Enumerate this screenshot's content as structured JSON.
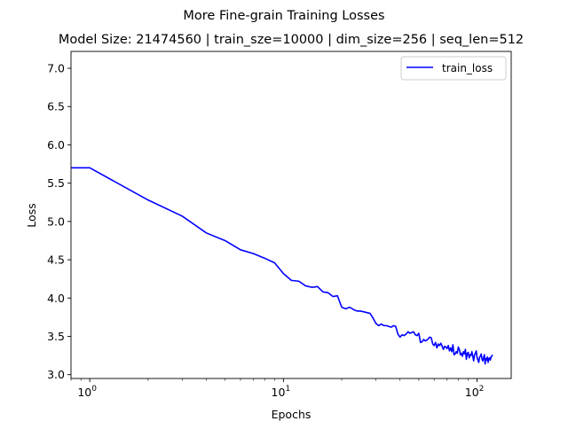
{
  "figure": {
    "suptitle": "More Fine-grain Training Losses"
  },
  "chart_data": {
    "type": "line",
    "title": "Model Size: 21474560 | train_sze=10000 | dim_size=256 | seq_len=512",
    "xlabel": "Epochs",
    "ylabel": "Loss",
    "xscale": "log",
    "xlim": [
      0.8,
      150
    ],
    "ylim": [
      2.95,
      7.22
    ],
    "xticks": [
      {
        "value": 1,
        "base": "10",
        "exp": "0"
      },
      {
        "value": 10,
        "base": "10",
        "exp": "1"
      },
      {
        "value": 100,
        "base": "10",
        "exp": "2"
      }
    ],
    "yticks": [
      "3.0",
      "3.5",
      "4.0",
      "4.5",
      "5.0",
      "5.5",
      "6.0",
      "6.5",
      "7.0"
    ],
    "legend": {
      "position": "top-right",
      "entries": [
        "train_loss"
      ]
    },
    "grid": false,
    "series": [
      {
        "name": "train_loss",
        "color": "#0000ff",
        "x": [
          0.8,
          1,
          2,
          3,
          4,
          5,
          6,
          7,
          8,
          9,
          10,
          11,
          12,
          13,
          14,
          15,
          16,
          17,
          18,
          19,
          20,
          21,
          22,
          23,
          24,
          25,
          26,
          27,
          28,
          29,
          30,
          31,
          32,
          33,
          34,
          35,
          36,
          37,
          38,
          39,
          40,
          41,
          42,
          43,
          44,
          45,
          46,
          47,
          48,
          49,
          50,
          51,
          52,
          53,
          54,
          55,
          56,
          57,
          58,
          59,
          60,
          61,
          62,
          63,
          64,
          65,
          66,
          67,
          68,
          69,
          70,
          71,
          72,
          73,
          74,
          75,
          76,
          77,
          78,
          79,
          80,
          81,
          82,
          83,
          84,
          85,
          86,
          87,
          88,
          89,
          90,
          91,
          92,
          93,
          94,
          95,
          96,
          97,
          98,
          99,
          100,
          101,
          102,
          103,
          104,
          105,
          106,
          107,
          108,
          109,
          110,
          111,
          112,
          113,
          114,
          115,
          116,
          117,
          118,
          119,
          120
        ],
        "y": [
          5.7,
          5.7,
          5.28,
          5.07,
          4.85,
          4.75,
          4.63,
          4.58,
          4.52,
          4.46,
          4.32,
          4.23,
          4.22,
          4.16,
          4.14,
          4.15,
          4.08,
          4.07,
          4.02,
          4.03,
          3.88,
          3.86,
          3.88,
          3.85,
          3.83,
          3.83,
          3.82,
          3.81,
          3.8,
          3.74,
          3.67,
          3.64,
          3.66,
          3.64,
          3.64,
          3.63,
          3.62,
          3.64,
          3.63,
          3.53,
          3.49,
          3.52,
          3.51,
          3.53,
          3.56,
          3.54,
          3.55,
          3.56,
          3.52,
          3.51,
          3.54,
          3.42,
          3.43,
          3.46,
          3.44,
          3.45,
          3.47,
          3.49,
          3.48,
          3.4,
          3.38,
          3.42,
          3.35,
          3.4,
          3.38,
          3.41,
          3.37,
          3.33,
          3.37,
          3.36,
          3.34,
          3.38,
          3.31,
          3.35,
          3.3,
          3.39,
          3.26,
          3.27,
          3.3,
          3.28,
          3.36,
          3.33,
          3.26,
          3.28,
          3.24,
          3.3,
          3.27,
          3.33,
          3.2,
          3.28,
          3.29,
          3.22,
          3.26,
          3.25,
          3.3,
          3.24,
          3.18,
          3.26,
          3.28,
          3.31,
          3.22,
          3.19,
          3.16,
          3.23,
          3.24,
          3.27,
          3.2,
          3.18,
          3.22,
          3.26,
          3.14,
          3.21,
          3.19,
          3.23,
          3.16,
          3.21,
          3.22,
          3.19,
          3.23,
          3.24,
          3.26
        ]
      }
    ]
  }
}
